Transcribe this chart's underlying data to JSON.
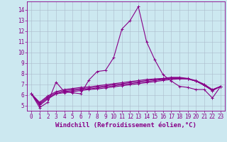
{
  "title": "",
  "xlabel": "Windchill (Refroidissement éolien,°C)",
  "bg_color": "#cce8f0",
  "line_color": "#880088",
  "grid_color": "#aabbcc",
  "xlim": [
    -0.5,
    23.5
  ],
  "ylim": [
    4.5,
    14.8
  ],
  "xticks": [
    0,
    1,
    2,
    3,
    4,
    5,
    6,
    7,
    8,
    9,
    10,
    11,
    12,
    13,
    14,
    15,
    16,
    17,
    18,
    19,
    20,
    21,
    22,
    23
  ],
  "yticks": [
    5,
    6,
    7,
    8,
    9,
    10,
    11,
    12,
    13,
    14
  ],
  "lines": [
    [
      6.1,
      4.8,
      5.3,
      7.2,
      6.3,
      6.2,
      6.1,
      7.4,
      8.2,
      8.3,
      9.5,
      12.2,
      13.0,
      14.3,
      11.0,
      9.3,
      7.9,
      7.3,
      6.8,
      6.7,
      6.5,
      6.5,
      5.7,
      6.8
    ],
    [
      6.1,
      5.0,
      5.6,
      6.1,
      6.2,
      6.3,
      6.4,
      6.5,
      6.55,
      6.65,
      6.75,
      6.85,
      6.95,
      7.05,
      7.15,
      7.25,
      7.35,
      7.45,
      7.5,
      7.5,
      7.3,
      6.9,
      6.4,
      6.8
    ],
    [
      6.1,
      5.1,
      5.7,
      6.1,
      6.3,
      6.4,
      6.5,
      6.55,
      6.65,
      6.75,
      6.85,
      6.95,
      7.05,
      7.15,
      7.25,
      7.35,
      7.45,
      7.55,
      7.55,
      7.5,
      7.3,
      6.9,
      6.4,
      6.8
    ],
    [
      6.1,
      5.2,
      5.8,
      6.2,
      6.4,
      6.5,
      6.6,
      6.65,
      6.75,
      6.85,
      6.95,
      7.05,
      7.15,
      7.25,
      7.35,
      7.45,
      7.5,
      7.6,
      7.6,
      7.5,
      7.3,
      6.95,
      6.45,
      6.8
    ],
    [
      6.1,
      5.3,
      5.9,
      6.3,
      6.5,
      6.6,
      6.7,
      6.75,
      6.85,
      6.95,
      7.05,
      7.15,
      7.25,
      7.35,
      7.45,
      7.5,
      7.55,
      7.65,
      7.65,
      7.55,
      7.35,
      7.0,
      6.5,
      6.8
    ]
  ],
  "marker": "+",
  "markersize": 3,
  "linewidth": 0.8,
  "xlabel_fontsize": 6.5,
  "tick_fontsize": 5.5
}
